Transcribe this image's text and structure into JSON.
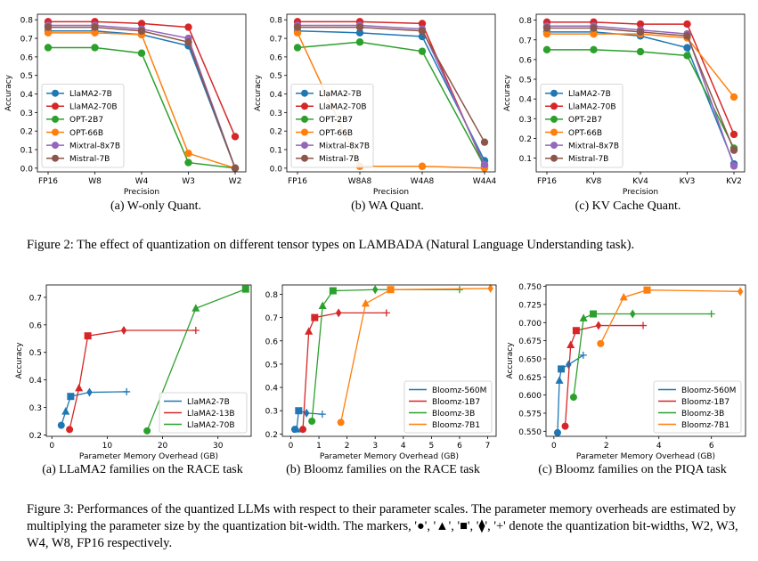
{
  "figures": {
    "fig2_caption": "Figure 2: The effect of quantization on different tensor types on LAMBADA (Natural Language Understanding task).",
    "fig3_caption": "Figure 3: Performances of the quantized LLMs with respect to their parameter scales. The parameter memory overheads are estimated by multiplying the parameter size by the quantization bit-width. The markers, '●', '▲', '■', '⧫', '+' denote the quantization bit-widths, W2, W3, W4, W8, FP16 respectively."
  },
  "colors": {
    "blue": "#1f77b4",
    "red": "#d62728",
    "green": "#2ca02c",
    "orange": "#ff7f0e",
    "purple": "#9467bd",
    "brown": "#8c564b"
  },
  "chart_data": [
    {
      "id": "w-only",
      "type": "line",
      "caption": "(a) W-only Quant.",
      "xlabel": "Precision",
      "ylabel": "Accuracy",
      "categories": [
        "FP16",
        "W8",
        "W4",
        "W3",
        "W2"
      ],
      "ylim": [
        -0.02,
        0.83
      ],
      "yticks": [
        0.0,
        0.1,
        0.2,
        0.3,
        0.4,
        0.5,
        0.6,
        0.7,
        0.8
      ],
      "yticklabels": [
        "0.0",
        "0.1",
        "0.2",
        "0.3",
        "0.4",
        "0.5",
        "0.6",
        "0.7",
        "0.8"
      ],
      "legend": "lower-left",
      "series": [
        {
          "name": "LlaMA2-7B",
          "color": "#1f77b4",
          "values": [
            0.74,
            0.74,
            0.72,
            0.66,
            0.0
          ]
        },
        {
          "name": "LlaMA2-70B",
          "color": "#d62728",
          "values": [
            0.79,
            0.79,
            0.78,
            0.76,
            0.17
          ]
        },
        {
          "name": "OPT-2B7",
          "color": "#2ca02c",
          "values": [
            0.65,
            0.65,
            0.62,
            0.03,
            0.0
          ]
        },
        {
          "name": "OPT-66B",
          "color": "#ff7f0e",
          "values": [
            0.73,
            0.73,
            0.72,
            0.08,
            0.0
          ]
        },
        {
          "name": "Mixtral-8x7B",
          "color": "#9467bd",
          "values": [
            0.77,
            0.77,
            0.75,
            0.7,
            0.0
          ]
        },
        {
          "name": "Mistral-7B",
          "color": "#8c564b",
          "values": [
            0.76,
            0.76,
            0.74,
            0.68,
            0.0
          ]
        }
      ]
    },
    {
      "id": "wa",
      "type": "line",
      "caption": "(b) WA Quant.",
      "xlabel": "Precision",
      "ylabel": "Accuracy",
      "categories": [
        "FP16",
        "W8A8",
        "W4A8",
        "W4A4"
      ],
      "ylim": [
        -0.02,
        0.83
      ],
      "yticks": [
        0.0,
        0.1,
        0.2,
        0.3,
        0.4,
        0.5,
        0.6,
        0.7,
        0.8
      ],
      "yticklabels": [
        "0.0",
        "0.1",
        "0.2",
        "0.3",
        "0.4",
        "0.5",
        "0.6",
        "0.7",
        "0.8"
      ],
      "legend": "lower-left",
      "series": [
        {
          "name": "LlaMA2-7B",
          "color": "#1f77b4",
          "values": [
            0.74,
            0.73,
            0.71,
            0.04
          ]
        },
        {
          "name": "LlaMA2-70B",
          "color": "#d62728",
          "values": [
            0.79,
            0.79,
            0.78,
            0.01
          ]
        },
        {
          "name": "OPT-2B7",
          "color": "#2ca02c",
          "values": [
            0.65,
            0.68,
            0.63,
            0.01
          ]
        },
        {
          "name": "OPT-66B",
          "color": "#ff7f0e",
          "values": [
            0.73,
            0.01,
            0.01,
            0.0
          ]
        },
        {
          "name": "Mixtral-8x7B",
          "color": "#9467bd",
          "values": [
            0.77,
            0.77,
            0.75,
            0.02
          ]
        },
        {
          "name": "Mistral-7B",
          "color": "#8c564b",
          "values": [
            0.76,
            0.76,
            0.74,
            0.14
          ]
        }
      ]
    },
    {
      "id": "kv",
      "type": "line",
      "caption": "(c) KV Cache Quant.",
      "xlabel": "Precision",
      "ylabel": "Accuracy",
      "categories": [
        "FP16",
        "KV8",
        "KV4",
        "KV3",
        "KV2"
      ],
      "ylim": [
        0.03,
        0.83
      ],
      "yticks": [
        0.1,
        0.2,
        0.3,
        0.4,
        0.5,
        0.6,
        0.7,
        0.8
      ],
      "yticklabels": [
        "0.1",
        "0.2",
        "0.3",
        "0.4",
        "0.5",
        "0.6",
        "0.7",
        "0.8"
      ],
      "legend": "lower-left",
      "series": [
        {
          "name": "LlaMA2-7B",
          "color": "#1f77b4",
          "values": [
            0.74,
            0.74,
            0.72,
            0.66,
            0.07
          ]
        },
        {
          "name": "LlaMA2-70B",
          "color": "#d62728",
          "values": [
            0.79,
            0.79,
            0.78,
            0.78,
            0.22
          ]
        },
        {
          "name": "OPT-2B7",
          "color": "#2ca02c",
          "values": [
            0.65,
            0.65,
            0.64,
            0.62,
            0.15
          ]
        },
        {
          "name": "OPT-66B",
          "color": "#ff7f0e",
          "values": [
            0.73,
            0.73,
            0.73,
            0.71,
            0.41
          ]
        },
        {
          "name": "Mixtral-8x7B",
          "color": "#9467bd",
          "values": [
            0.77,
            0.77,
            0.75,
            0.73,
            0.06
          ]
        },
        {
          "name": "Mistral-7B",
          "color": "#8c564b",
          "values": [
            0.76,
            0.76,
            0.74,
            0.72,
            0.14
          ]
        }
      ]
    },
    {
      "id": "llama-race",
      "type": "scatter",
      "caption": "(a) LLaMA2 families on the RACE task",
      "xlabel": "Parameter Memory Overhead (GB)",
      "ylabel": "Accuracy",
      "xlim": [
        -1,
        36
      ],
      "ylim": [
        0.195,
        0.745
      ],
      "xticks": [
        0,
        10,
        20,
        30
      ],
      "xticklabels": [
        "0",
        "10",
        "20",
        "30"
      ],
      "yticks": [
        0.2,
        0.3,
        0.4,
        0.5,
        0.6,
        0.7
      ],
      "yticklabels": [
        "0.2",
        "0.3",
        "0.4",
        "0.5",
        "0.6",
        "0.7"
      ],
      "markers": [
        "circle",
        "triangle",
        "square",
        "diamond",
        "plus"
      ],
      "legend": "lower-right",
      "series": [
        {
          "name": "LlaMA2-7B",
          "color": "#1f77b4",
          "x": [
            1.7,
            2.5,
            3.4,
            6.8,
            13.5
          ],
          "y": [
            0.235,
            0.285,
            0.34,
            0.355,
            0.357
          ]
        },
        {
          "name": "LlaMA2-13B",
          "color": "#d62728",
          "x": [
            3.2,
            4.9,
            6.5,
            13.0,
            26.0
          ],
          "y": [
            0.22,
            0.37,
            0.56,
            0.58,
            0.58
          ]
        },
        {
          "name": "LlaMA2-70B",
          "color": "#2ca02c",
          "x": [
            17.2,
            26.0,
            35.0
          ],
          "y": [
            0.215,
            0.66,
            0.73
          ]
        }
      ]
    },
    {
      "id": "bloomz-race",
      "type": "scatter",
      "caption": "(b) Bloomz families on the RACE task",
      "xlabel": "Parameter Memory Overhead (GB)",
      "ylabel": "",
      "xlim": [
        -0.3,
        7.3
      ],
      "ylim": [
        0.19,
        0.84
      ],
      "xticks": [
        0,
        1,
        2,
        3,
        4,
        5,
        6,
        7
      ],
      "xticklabels": [
        "0",
        "1",
        "2",
        "3",
        "4",
        "5",
        "6",
        "7"
      ],
      "yticks": [
        0.2,
        0.3,
        0.4,
        0.5,
        0.6,
        0.7,
        0.8
      ],
      "yticklabels": [
        "0.2",
        "0.3",
        "0.4",
        "0.5",
        "0.6",
        "0.7",
        "0.8"
      ],
      "markers": [
        "circle",
        "triangle",
        "square",
        "diamond",
        "plus"
      ],
      "legend": "lower-right",
      "series": [
        {
          "name": "Bloomz-560M",
          "color": "#1f77b4",
          "x": [
            0.14,
            0.21,
            0.28,
            0.56,
            1.12
          ],
          "y": [
            0.22,
            0.22,
            0.3,
            0.29,
            0.285
          ]
        },
        {
          "name": "Bloomz-1B7",
          "color": "#d62728",
          "x": [
            0.43,
            0.64,
            0.85,
            1.7,
            3.4
          ],
          "y": [
            0.22,
            0.64,
            0.7,
            0.72,
            0.72
          ]
        },
        {
          "name": "Bloomz-3B",
          "color": "#2ca02c",
          "x": [
            0.75,
            1.13,
            1.5,
            3.0,
            6.0
          ],
          "y": [
            0.255,
            0.75,
            0.815,
            0.82,
            0.82
          ]
        },
        {
          "name": "Bloomz-7B1",
          "color": "#ff7f0e",
          "x": [
            1.78,
            2.66,
            3.55,
            7.1
          ],
          "y": [
            0.25,
            0.76,
            0.82,
            0.825
          ]
        }
      ]
    },
    {
      "id": "bloomz-piqa",
      "type": "scatter",
      "caption": "(c) Bloomz families on the PIQA task",
      "xlabel": "Parameter Memory Overhead (GB)",
      "ylabel": "Accuracy",
      "xlim": [
        -0.3,
        7.3
      ],
      "ylim": [
        0.543,
        0.752
      ],
      "xticks": [
        0,
        2,
        4,
        6
      ],
      "xticklabels": [
        "0",
        "2",
        "4",
        "6"
      ],
      "yticks": [
        0.55,
        0.575,
        0.6,
        0.625,
        0.65,
        0.675,
        0.7,
        0.725,
        0.75
      ],
      "yticklabels": [
        "0.550",
        "0.575",
        "0.600",
        "0.625",
        "0.650",
        "0.675",
        "0.700",
        "0.725",
        "0.750"
      ],
      "markers": [
        "circle",
        "triangle",
        "square",
        "diamond",
        "plus"
      ],
      "legend": "lower-right",
      "series": [
        {
          "name": "Bloomz-560M",
          "color": "#1f77b4",
          "x": [
            0.14,
            0.21,
            0.28,
            0.56,
            1.12
          ],
          "y": [
            0.548,
            0.62,
            0.636,
            0.642,
            0.655
          ]
        },
        {
          "name": "Bloomz-1B7",
          "color": "#d62728",
          "x": [
            0.43,
            0.64,
            0.85,
            1.7,
            3.4
          ],
          "y": [
            0.557,
            0.669,
            0.689,
            0.696,
            0.696
          ]
        },
        {
          "name": "Bloomz-3B",
          "color": "#2ca02c",
          "x": [
            0.75,
            1.13,
            1.5,
            3.0,
            6.0
          ],
          "y": [
            0.597,
            0.706,
            0.712,
            0.712,
            0.712
          ]
        },
        {
          "name": "Bloomz-7B1",
          "color": "#ff7f0e",
          "x": [
            1.78,
            2.66,
            3.55,
            7.1
          ],
          "y": [
            0.671,
            0.735,
            0.745,
            0.743
          ]
        }
      ]
    }
  ]
}
